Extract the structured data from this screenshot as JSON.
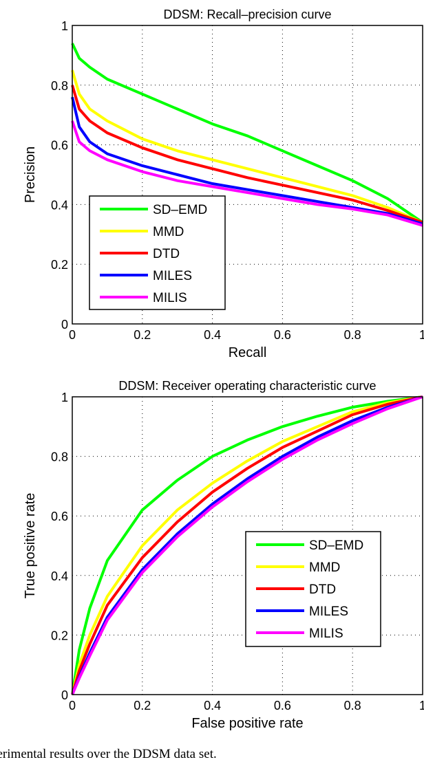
{
  "caption": "perimental results over the DDSM data set.",
  "chart_data": [
    {
      "type": "line",
      "title": "DDSM: Recall–precision curve",
      "xlabel": "Recall",
      "ylabel": "Precision",
      "xlim": [
        0,
        1
      ],
      "ylim": [
        0,
        1
      ],
      "grid": true,
      "legend": "bottom-left",
      "xticks": [
        "0",
        "0.2",
        "0.4",
        "0.6",
        "0.8",
        "1"
      ],
      "yticks": [
        "0",
        "0.2",
        "0.4",
        "0.6",
        "0.8",
        "1"
      ],
      "x": [
        0,
        0.02,
        0.05,
        0.1,
        0.2,
        0.3,
        0.4,
        0.5,
        0.6,
        0.7,
        0.8,
        0.9,
        1.0
      ],
      "series": [
        {
          "name": "SD–EMD",
          "color": "#00ff00",
          "values": [
            0.94,
            0.89,
            0.86,
            0.82,
            0.77,
            0.72,
            0.67,
            0.63,
            0.58,
            0.53,
            0.48,
            0.42,
            0.34
          ]
        },
        {
          "name": "MMD",
          "color": "#ffff00",
          "values": [
            0.85,
            0.77,
            0.72,
            0.68,
            0.62,
            0.58,
            0.55,
            0.52,
            0.49,
            0.46,
            0.43,
            0.39,
            0.34
          ]
        },
        {
          "name": "DTD",
          "color": "#ff0000",
          "values": [
            0.8,
            0.72,
            0.68,
            0.64,
            0.59,
            0.55,
            0.52,
            0.49,
            0.465,
            0.44,
            0.415,
            0.38,
            0.34
          ]
        },
        {
          "name": "MILES",
          "color": "#0000ff",
          "values": [
            0.76,
            0.66,
            0.61,
            0.57,
            0.53,
            0.5,
            0.47,
            0.45,
            0.43,
            0.41,
            0.39,
            0.37,
            0.335
          ]
        },
        {
          "name": "MILIS",
          "color": "#ff00ff",
          "values": [
            0.68,
            0.61,
            0.58,
            0.55,
            0.51,
            0.48,
            0.46,
            0.44,
            0.42,
            0.4,
            0.385,
            0.365,
            0.33
          ]
        }
      ]
    },
    {
      "type": "line",
      "title": "DDSM: Receiver operating characteristic curve",
      "xlabel": "False positive rate",
      "ylabel": "True positive rate",
      "xlim": [
        0,
        1
      ],
      "ylim": [
        0,
        1
      ],
      "grid": true,
      "legend": "center-right",
      "xticks": [
        "0",
        "0.2",
        "0.4",
        "0.6",
        "0.8",
        "1"
      ],
      "yticks": [
        "0",
        "0.2",
        "0.4",
        "0.6",
        "0.8",
        "1"
      ],
      "x": [
        0,
        0.02,
        0.05,
        0.1,
        0.2,
        0.3,
        0.4,
        0.5,
        0.6,
        0.7,
        0.8,
        0.9,
        1.0
      ],
      "series": [
        {
          "name": "SD–EMD",
          "color": "#00ff00",
          "values": [
            0,
            0.15,
            0.29,
            0.45,
            0.62,
            0.72,
            0.8,
            0.855,
            0.9,
            0.935,
            0.965,
            0.985,
            1
          ]
        },
        {
          "name": "MMD",
          "color": "#ffff00",
          "values": [
            0,
            0.1,
            0.2,
            0.33,
            0.5,
            0.62,
            0.71,
            0.785,
            0.85,
            0.9,
            0.95,
            0.98,
            1
          ]
        },
        {
          "name": "DTD",
          "color": "#ff0000",
          "values": [
            0,
            0.08,
            0.17,
            0.3,
            0.46,
            0.58,
            0.68,
            0.76,
            0.83,
            0.885,
            0.94,
            0.975,
            1
          ]
        },
        {
          "name": "MILES",
          "color": "#0000ff",
          "values": [
            0,
            0.06,
            0.14,
            0.26,
            0.42,
            0.54,
            0.64,
            0.725,
            0.8,
            0.865,
            0.92,
            0.965,
            1
          ]
        },
        {
          "name": "MILIS",
          "color": "#ff00ff",
          "values": [
            0,
            0.055,
            0.13,
            0.25,
            0.41,
            0.53,
            0.63,
            0.715,
            0.79,
            0.855,
            0.91,
            0.96,
            1
          ]
        }
      ]
    }
  ]
}
